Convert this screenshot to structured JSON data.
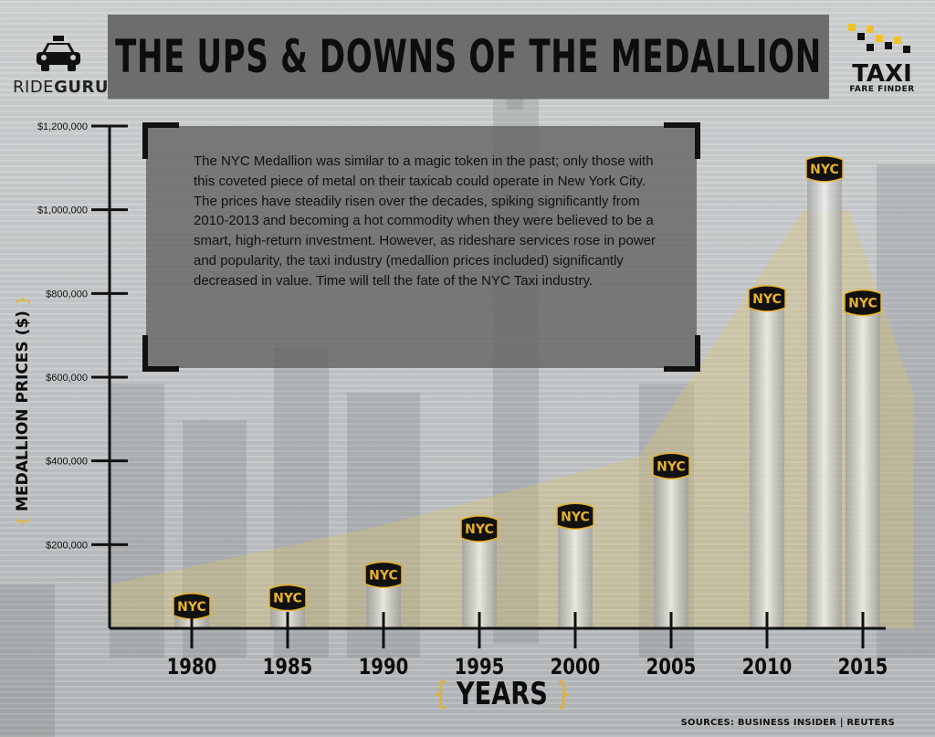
{
  "header": {
    "title": "THE UPS & DOWNS OF THE MEDALLION"
  },
  "brands": {
    "left": {
      "light": "RIDE",
      "bold": "GURU"
    },
    "right": {
      "name": "TAXI",
      "subtitle": "FARE FINDER"
    }
  },
  "info": {
    "text": "The NYC Medallion was similar to a magic token in the past; only those with this coveted piece of metal on their taxicab could operate in New York City. The prices have steadily risen over the decades, spiking significantly from 2010-2013 and becoming a hot commodity when they were believed to be a smart, high-return investment. However, as rideshare services rose in power and popularity, the taxi industry (medallion prices included) significantly decreased in value.  Time will tell the fate of the NYC Taxi industry."
  },
  "footer": {
    "sources": "SOURCES: BUSINESS INSIDER | REUTERS"
  },
  "colors": {
    "accent": "#e7b227",
    "badge_fill": "#111111",
    "title_bar": "#6c6d6e",
    "axis": "#111111"
  },
  "chart_data": {
    "type": "bar",
    "title": "THE UPS & DOWNS OF THE MEDALLION",
    "xlabel": "YEARS",
    "ylabel": "MEDALLION PRICES ($)",
    "bar_label": "NYC",
    "x": [
      1980,
      1985,
      1990,
      1995,
      2000,
      2005,
      2010,
      2013,
      2015
    ],
    "values": [
      55000,
      75000,
      130000,
      240000,
      270000,
      390000,
      790000,
      1100000,
      780000
    ],
    "x_tick_labels": [
      "1980",
      "1985",
      "1990",
      "1995",
      "2000",
      "2005",
      "2010",
      "2015"
    ],
    "x_tick_values": [
      1980,
      1985,
      1990,
      1995,
      2000,
      2005,
      2010,
      2015
    ],
    "y_tick_labels": [
      "$200,000",
      "$400,000",
      "$600,000",
      "$800,000",
      "$1,000,000",
      "$1,200,000"
    ],
    "y_tick_values": [
      200000,
      400000,
      600000,
      800000,
      1000000,
      1200000
    ],
    "ylim": [
      0,
      1200000
    ],
    "xlim": [
      1975,
      2015
    ],
    "grid": false,
    "legend": "none"
  }
}
